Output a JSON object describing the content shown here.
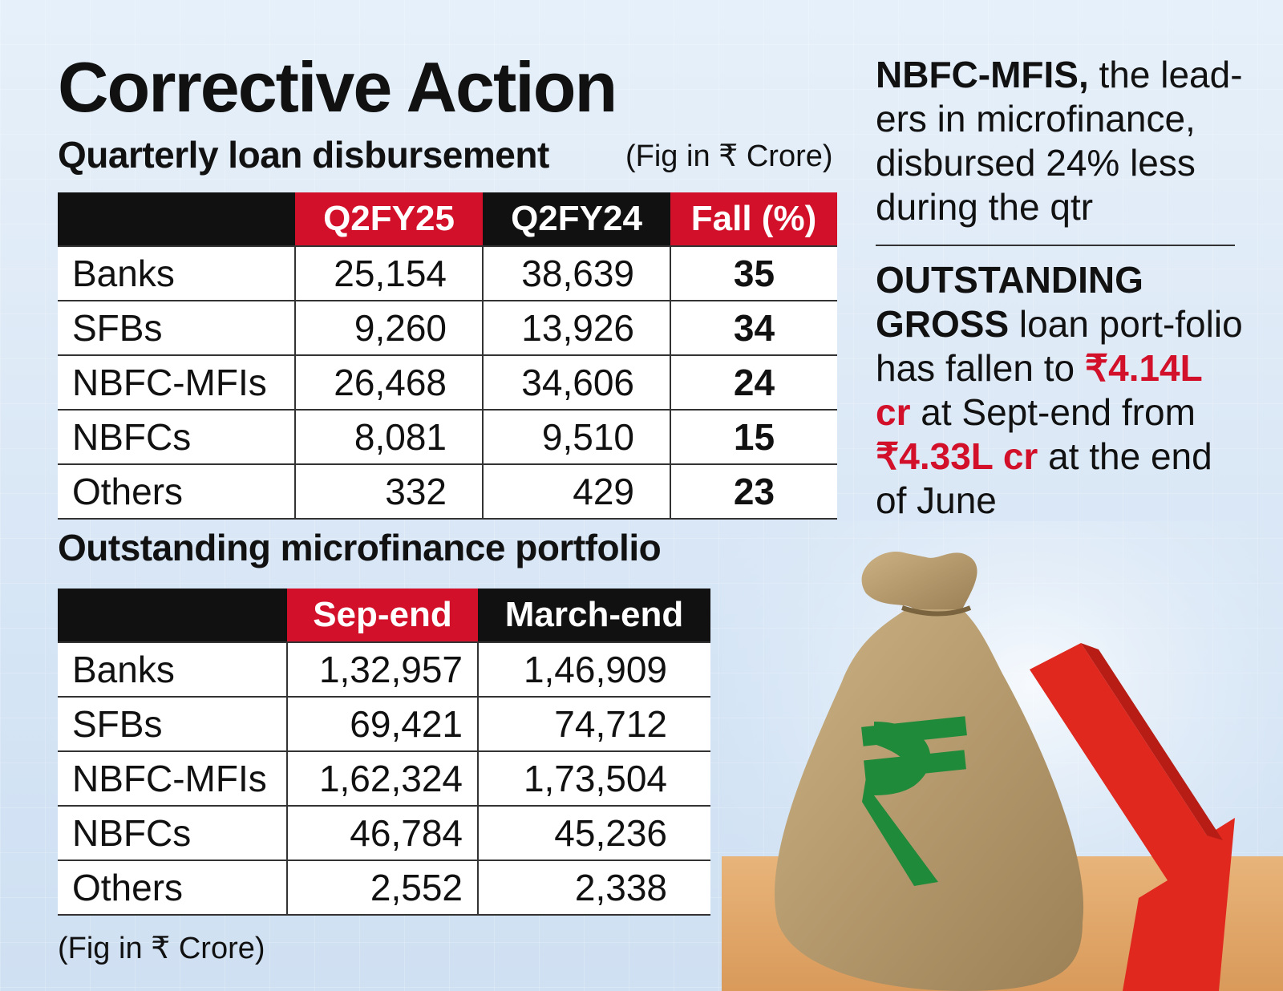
{
  "title": "Corrective Action",
  "section1": {
    "subtitle": "Quarterly loan disbursement",
    "unit": "(Fig in ₹ Crore)",
    "headers": [
      "",
      "Q2FY25",
      "Q2FY24",
      "Fall (%)"
    ],
    "rows": [
      {
        "label": "Banks",
        "q2fy25": "25,154",
        "q2fy24": "38,639",
        "fall": "35"
      },
      {
        "label": "SFBs",
        "q2fy25": "9,260",
        "q2fy24": "13,926",
        "fall": "34"
      },
      {
        "label": "NBFC-MFIs",
        "q2fy25": "26,468",
        "q2fy24": "34,606",
        "fall": "24"
      },
      {
        "label": "NBFCs",
        "q2fy25": "8,081",
        "q2fy24": "9,510",
        "fall": "15"
      },
      {
        "label": "Others",
        "q2fy25": "332",
        "q2fy24": "429",
        "fall": "23"
      }
    ]
  },
  "section2": {
    "subtitle": "Outstanding microfinance portfolio",
    "unit": "(Fig in ₹ Crore)",
    "headers": [
      "",
      "Sep-end",
      "March-end"
    ],
    "rows": [
      {
        "label": "Banks",
        "sep": "1,32,957",
        "mar": "1,46,909"
      },
      {
        "label": "SFBs",
        "sep": "69,421",
        "mar": "74,712"
      },
      {
        "label": "NBFC-MFIs",
        "sep": "1,62,324",
        "mar": "1,73,504"
      },
      {
        "label": "NBFCs",
        "sep": "46,784",
        "mar": "45,236"
      },
      {
        "label": "Others",
        "sep": "2,552",
        "mar": "2,338"
      }
    ]
  },
  "notes": {
    "n1_bold": "NBFC-MFIS,",
    "n1_rest": " the lead-ers in microfinance, disbursed 24% less during the qtr",
    "n2_bold": "OUTSTANDING GROSS",
    "n2_a": " loan port-folio has fallen to ",
    "n2_red1": "₹4.14L cr",
    "n2_b": " at Sept-end from ",
    "n2_red2": "₹4.33L cr",
    "n2_c": " at the end of June"
  },
  "illustration": {
    "bag_icon": "money-bag-rupee-icon",
    "arrow_icon": "down-arrow-icon",
    "bag_color": "#b89a6a",
    "rupee_color": "#1f8a3a",
    "arrow_color": "#e0281e"
  },
  "chart_data": [
    {
      "type": "table",
      "title": "Quarterly loan disbursement",
      "unit": "(Fig in ₹ Crore)",
      "columns": [
        "Q2FY25",
        "Q2FY24",
        "Fall (%)"
      ],
      "categories": [
        "Banks",
        "SFBs",
        "NBFC-MFIs",
        "NBFCs",
        "Others"
      ],
      "series": [
        {
          "name": "Q2FY25",
          "values": [
            25154,
            9260,
            26468,
            8081,
            332
          ]
        },
        {
          "name": "Q2FY24",
          "values": [
            38639,
            13926,
            34606,
            9510,
            429
          ]
        },
        {
          "name": "Fall (%)",
          "values": [
            35,
            34,
            24,
            15,
            23
          ]
        }
      ]
    },
    {
      "type": "table",
      "title": "Outstanding microfinance portfolio",
      "unit": "(Fig in ₹ Crore)",
      "columns": [
        "Sep-end",
        "March-end"
      ],
      "categories": [
        "Banks",
        "SFBs",
        "NBFC-MFIs",
        "NBFCs",
        "Others"
      ],
      "series": [
        {
          "name": "Sep-end",
          "values": [
            132957,
            69421,
            162324,
            46784,
            2552
          ]
        },
        {
          "name": "March-end",
          "values": [
            146909,
            74712,
            173504,
            45236,
            2338
          ]
        }
      ]
    }
  ]
}
